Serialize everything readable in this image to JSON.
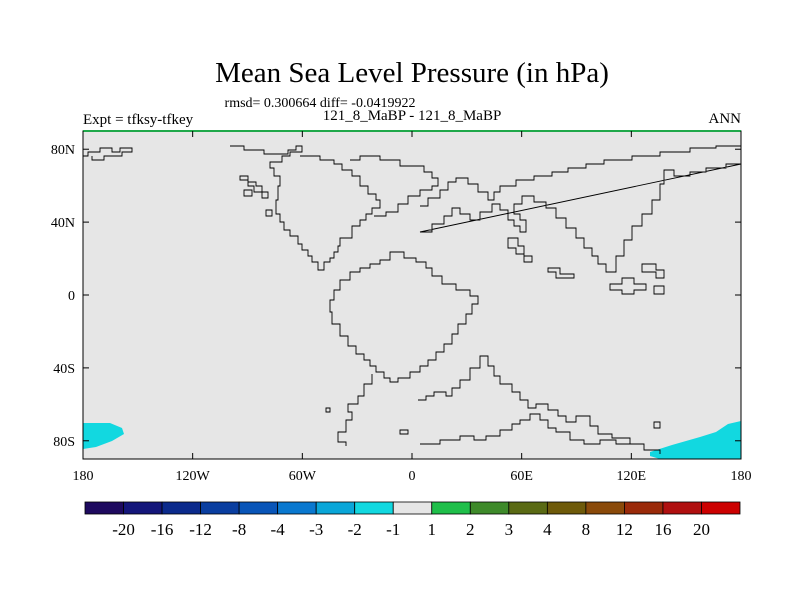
{
  "chart_data": {
    "type": "heatmap",
    "title": "Mean Sea Level Pressure (in hPa)",
    "stats_line": "rmsd= 0.300664 diff= -0.0419922",
    "left_label": "Expt = tfksy-tfkey",
    "center_label": "121_8_MaBP - 121_8_MaBP",
    "right_label": "ANN",
    "x_ticks": [
      {
        "lon": -180,
        "label": "180"
      },
      {
        "lon": -120,
        "label": "120W"
      },
      {
        "lon": -60,
        "label": "60W"
      },
      {
        "lon": 0,
        "label": "0"
      },
      {
        "lon": 60,
        "label": "60E"
      },
      {
        "lon": 120,
        "label": "120E"
      },
      {
        "lon": 180,
        "label": "180"
      }
    ],
    "y_ticks": [
      {
        "lat": 80,
        "label": "80N"
      },
      {
        "lat": 40,
        "label": "40N"
      },
      {
        "lat": 0,
        "label": "0"
      },
      {
        "lat": -40,
        "label": "40S"
      },
      {
        "lat": -80,
        "label": "80S"
      }
    ],
    "xlim": [
      -180,
      180
    ],
    "ylim": [
      -90,
      90
    ],
    "field_background": "-1 to 1",
    "anomaly_regions": [
      {
        "name": "southwest-anomaly",
        "bin": "-2 to -1",
        "lon_range": [
          -180,
          -158
        ],
        "lat_range": [
          -90,
          -74
        ]
      },
      {
        "name": "southeast-anomaly",
        "bin": "-2 to -1",
        "lon_range": [
          130,
          180
        ],
        "lat_range": [
          -90,
          -74
        ]
      }
    ],
    "colorbar": {
      "colors": [
        "#1e0a5f",
        "#14167a",
        "#0b2a8c",
        "#0a3ea0",
        "#0955b8",
        "#0a78cf",
        "#0aa6d8",
        "#12d8e0",
        "#e6e6e6",
        "#1fbf4a",
        "#3e8a2a",
        "#5a6a14",
        "#6e5a0a",
        "#8a4a0a",
        "#9a2a0a",
        "#b01010",
        "#cc0000"
      ],
      "labels": [
        "-20",
        "-16",
        "-12",
        "-8",
        "-4",
        "-3",
        "-2",
        "-1",
        "1",
        "2",
        "3",
        "4",
        "8",
        "12",
        "16",
        "20"
      ]
    },
    "colors": {
      "background_field": "#e6e6e6",
      "anomaly": "#12d8e0",
      "frame_top": "#1fa84a"
    }
  }
}
